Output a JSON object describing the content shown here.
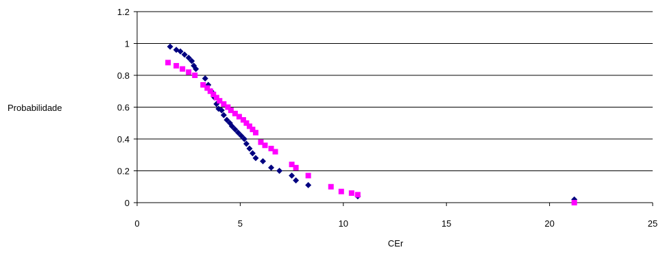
{
  "chart_data": {
    "type": "scatter",
    "title": "",
    "xlabel": "CEr",
    "ylabel": "Probabilidade",
    "xlim": [
      0,
      25
    ],
    "ylim": [
      0,
      1.2
    ],
    "x_ticks": [
      0,
      5,
      10,
      15,
      20,
      25
    ],
    "y_ticks": [
      0,
      0.2,
      0.4,
      0.6,
      0.8,
      1,
      1.2
    ],
    "x_tick_labels": [
      "0",
      "5",
      "10",
      "15",
      "20",
      "25"
    ],
    "y_tick_labels": [
      "0",
      "0.2",
      "0.4",
      "0.6",
      "0.8",
      "1",
      "1.2"
    ],
    "grid": "horizontal",
    "legend": "none",
    "series": [
      {
        "color": "#000080",
        "marker": "diamond",
        "points": [
          [
            1.6,
            0.98
          ],
          [
            1.9,
            0.96
          ],
          [
            2.1,
            0.95
          ],
          [
            2.3,
            0.93
          ],
          [
            2.5,
            0.91
          ],
          [
            2.65,
            0.89
          ],
          [
            2.75,
            0.86
          ],
          [
            2.85,
            0.84
          ],
          [
            3.3,
            0.78
          ],
          [
            3.45,
            0.74
          ],
          [
            3.6,
            0.7
          ],
          [
            3.75,
            0.66
          ],
          [
            3.85,
            0.62
          ],
          [
            3.95,
            0.59
          ],
          [
            4.1,
            0.58
          ],
          [
            4.2,
            0.55
          ],
          [
            4.35,
            0.52
          ],
          [
            4.5,
            0.5
          ],
          [
            4.6,
            0.48
          ],
          [
            4.75,
            0.46
          ],
          [
            4.9,
            0.44
          ],
          [
            5.05,
            0.42
          ],
          [
            5.2,
            0.4
          ],
          [
            5.3,
            0.37
          ],
          [
            5.45,
            0.34
          ],
          [
            5.6,
            0.31
          ],
          [
            5.75,
            0.28
          ],
          [
            6.1,
            0.26
          ],
          [
            6.5,
            0.22
          ],
          [
            6.9,
            0.2
          ],
          [
            7.5,
            0.17
          ],
          [
            7.7,
            0.14
          ],
          [
            8.3,
            0.11
          ],
          [
            10.7,
            0.04
          ],
          [
            21.2,
            0.02
          ]
        ]
      },
      {
        "color": "#FF00FF",
        "marker": "square",
        "points": [
          [
            1.5,
            0.88
          ],
          [
            1.9,
            0.86
          ],
          [
            2.2,
            0.84
          ],
          [
            2.5,
            0.82
          ],
          [
            2.8,
            0.8
          ],
          [
            3.2,
            0.74
          ],
          [
            3.4,
            0.72
          ],
          [
            3.55,
            0.7
          ],
          [
            3.7,
            0.68
          ],
          [
            3.85,
            0.66
          ],
          [
            4.0,
            0.64
          ],
          [
            4.2,
            0.62
          ],
          [
            4.4,
            0.6
          ],
          [
            4.55,
            0.58
          ],
          [
            4.75,
            0.56
          ],
          [
            4.95,
            0.54
          ],
          [
            5.15,
            0.52
          ],
          [
            5.3,
            0.5
          ],
          [
            5.45,
            0.48
          ],
          [
            5.6,
            0.46
          ],
          [
            5.75,
            0.44
          ],
          [
            6.0,
            0.38
          ],
          [
            6.2,
            0.36
          ],
          [
            6.5,
            0.34
          ],
          [
            6.7,
            0.32
          ],
          [
            7.5,
            0.24
          ],
          [
            7.7,
            0.22
          ],
          [
            8.3,
            0.17
          ],
          [
            9.4,
            0.1
          ],
          [
            9.9,
            0.07
          ],
          [
            10.4,
            0.06
          ],
          [
            10.7,
            0.05
          ],
          [
            21.2,
            0.0
          ]
        ]
      }
    ]
  }
}
